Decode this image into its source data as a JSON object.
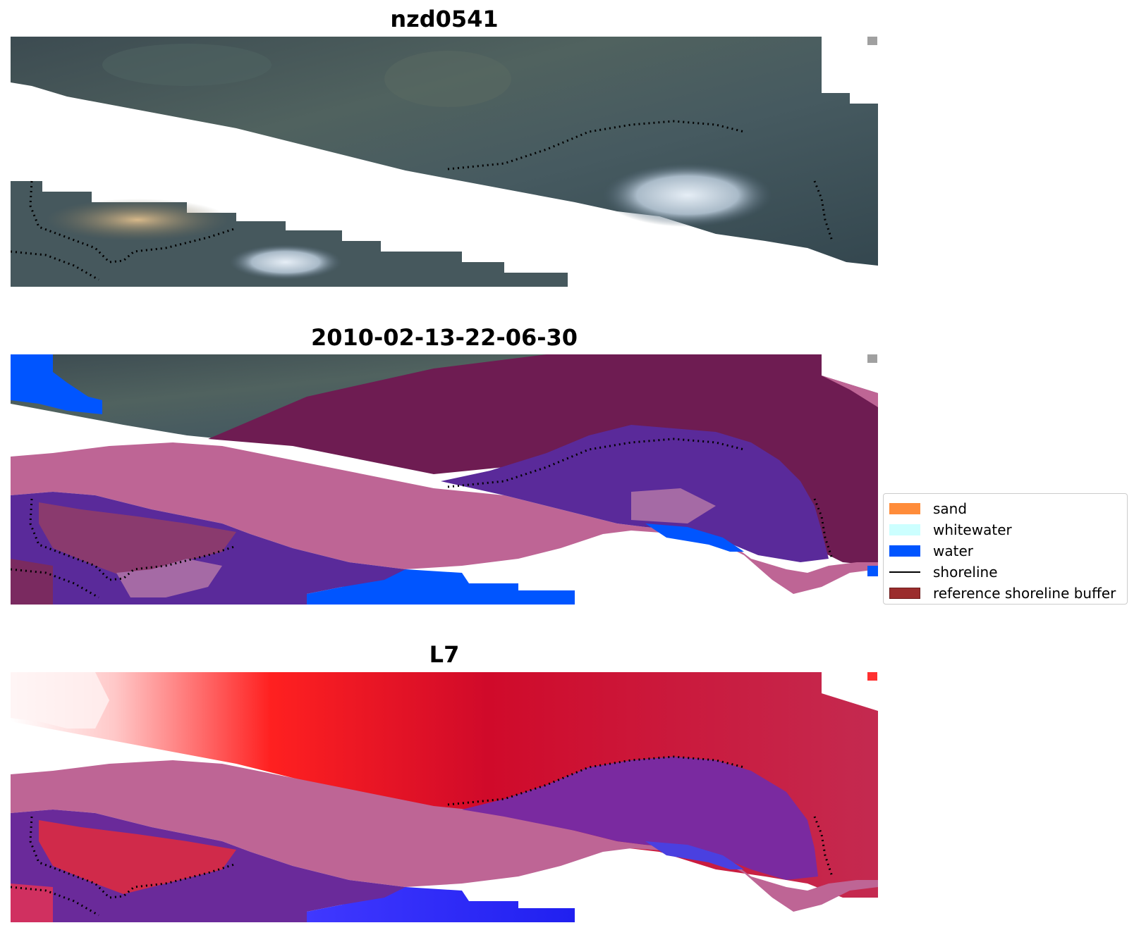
{
  "panels": [
    {
      "title": "nzd0541"
    },
    {
      "title": "2010-02-13-22-06-30"
    },
    {
      "title": "L7"
    }
  ],
  "legend": {
    "items": [
      {
        "label": "sand",
        "color": "#ff8c3a",
        "kind": "patch"
      },
      {
        "label": "whitewater",
        "color": "#ccffff",
        "kind": "patch"
      },
      {
        "label": "water",
        "color": "#0055ff",
        "kind": "patch"
      },
      {
        "label": "shoreline",
        "color": "#000000",
        "kind": "line"
      },
      {
        "label": "reference shoreline buffer",
        "color": "#9b2d2d",
        "kind": "patch"
      }
    ]
  }
}
